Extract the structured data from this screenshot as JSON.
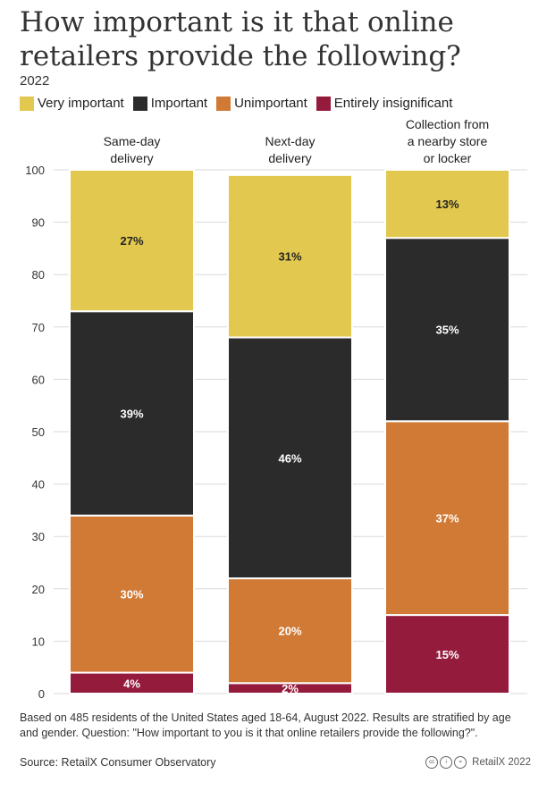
{
  "title": "How important is it that online retailers provide the following?",
  "subtitle": "2022",
  "colors": {
    "very_important": "#e2c84f",
    "important": "#2b2b2b",
    "unimportant": "#d17a35",
    "entirely_insignificant": "#951b3d"
  },
  "legend": [
    {
      "label": "Very important",
      "color": "#e2c84f"
    },
    {
      "label": "Important",
      "color": "#2b2b2b"
    },
    {
      "label": "Unimportant",
      "color": "#d17a35"
    },
    {
      "label": "Entirely insignificant",
      "color": "#951b3d"
    }
  ],
  "chart_data": {
    "type": "bar",
    "stacked": true,
    "categories": [
      [
        "Same-day",
        "delivery"
      ],
      [
        "Next-day",
        "delivery"
      ],
      [
        "Collection from",
        "a nearby store",
        "or locker"
      ]
    ],
    "series": [
      {
        "name": "Entirely insignificant",
        "color": "#951b3d",
        "values": [
          4,
          2,
          15
        ],
        "labels": [
          "4%",
          "2%",
          "15%"
        ]
      },
      {
        "name": "Unimportant",
        "color": "#d17a35",
        "values": [
          30,
          20,
          37
        ],
        "labels": [
          "30%",
          "20%",
          "37%"
        ]
      },
      {
        "name": "Important",
        "color": "#2b2b2b",
        "values": [
          39,
          46,
          35
        ],
        "labels": [
          "39%",
          "46%",
          "35%"
        ]
      },
      {
        "name": "Very important",
        "color": "#e2c84f",
        "values": [
          27,
          31,
          13
        ],
        "labels": [
          "27%",
          "31%",
          "13%"
        ]
      }
    ],
    "ylim": [
      0,
      100
    ],
    "yticks": [
      0,
      10,
      20,
      30,
      40,
      50,
      60,
      70,
      80,
      90,
      100
    ],
    "grid": true,
    "legend_position": "top"
  },
  "footnote": "Based on 485 residents of the United States aged 18-64, August 2022. Results are stratified by age and gender. Question: \"How important to you is it that online retailers provide the following?\".",
  "source": "Source: RetailX Consumer Observatory",
  "brand": "RetailX 2022"
}
